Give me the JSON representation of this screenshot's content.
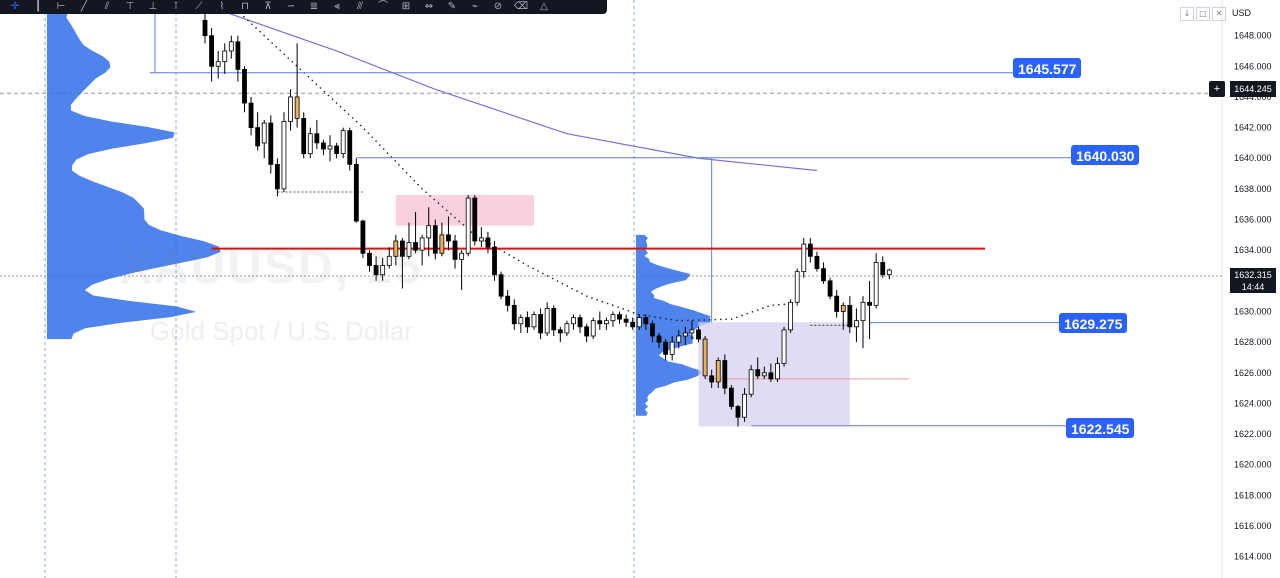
{
  "toolbar": {
    "tools": [
      {
        "name": "crosshair-tool-icon",
        "glyph": "✛",
        "active": true
      },
      {
        "name": "vertical-line-tool-icon",
        "glyph": "┃"
      },
      {
        "name": "horizontal-ray-tool-icon",
        "glyph": "⊢"
      },
      {
        "name": "trend-line-tool-icon",
        "glyph": "╱"
      },
      {
        "name": "channel-tool-icon",
        "glyph": "⫽"
      },
      {
        "name": "info-line-tool-icon",
        "glyph": "⊤"
      },
      {
        "name": "long-position-tool-icon",
        "glyph": "⊥"
      },
      {
        "name": "short-position-tool-icon",
        "glyph": "⊺"
      },
      {
        "name": "extended-line-tool-icon",
        "glyph": "⟋"
      },
      {
        "name": "path-tool-icon",
        "glyph": "⌇"
      },
      {
        "name": "ruler-tool-icon",
        "glyph": "⊓"
      },
      {
        "name": "polyline-tool-icon",
        "glyph": "⊼"
      },
      {
        "name": "curve-tool-icon",
        "glyph": "∽"
      },
      {
        "name": "fib-retracement-tool-icon",
        "glyph": "≣"
      },
      {
        "name": "pitchfork-tool-icon",
        "glyph": "⫷"
      },
      {
        "name": "fib-channel-tool-icon",
        "glyph": "⫻"
      },
      {
        "name": "arc-tool-icon",
        "glyph": "⌒"
      },
      {
        "name": "gann-box-tool-icon",
        "glyph": "⊞"
      },
      {
        "name": "date-range-tool-icon",
        "glyph": "⇔"
      },
      {
        "name": "price-note-tool-icon",
        "glyph": "✎"
      },
      {
        "name": "brush-tool-icon",
        "glyph": "⌁"
      },
      {
        "name": "highlighter-tool-icon",
        "glyph": "⊘"
      },
      {
        "name": "eraser-tool-icon",
        "glyph": "⌫"
      },
      {
        "name": "triangle-tool-icon",
        "glyph": "△"
      }
    ]
  },
  "scale_controls": {
    "minimize_glyph": "↓",
    "maximize_glyph": "□",
    "close_glyph": "✕"
  },
  "currency": "USD",
  "crosshair": {
    "plus_glyph": "+",
    "price": "1644.245"
  },
  "last_price": {
    "price": "1632.315",
    "countdown": "14:44"
  },
  "watermark": {
    "symbol": "XAUUSD, 15",
    "description": "Gold Spot / U.S. Dollar"
  },
  "badges": {
    "b1": "1645.577",
    "b2": "1640.030",
    "b3": "1629.275",
    "b4": "1622.545"
  },
  "colors": {
    "bull_body": "#ffffff",
    "bear_body": "#000000",
    "highlight_body": "#e8b060",
    "resistance_line": "#e01010",
    "level_line": "#5b7fd8",
    "ema_line": "#7e6fd6",
    "badge_bg": "#2962ff",
    "volume_profile": "#2f6ee8",
    "supply_zone": "#f7c6d4",
    "range_box": "#d7d0ef"
  },
  "chart_data": {
    "type": "candlestick",
    "symbol": "XAUUSD",
    "timeframe": "15",
    "y_axis": {
      "min": 1613,
      "max": 1650,
      "ticks": [
        "1648.000",
        "1646.000",
        "1644.000",
        "1642.000",
        "1640.000",
        "1638.000",
        "1636.000",
        "1634.000",
        "1632.000",
        "1630.000",
        "1628.000",
        "1626.000",
        "1624.000",
        "1622.000",
        "1620.000",
        "1618.000",
        "1616.000",
        "1614.000"
      ]
    },
    "candles": [
      [
        1649.0,
        1649.5,
        1647.5,
        1648.0
      ],
      [
        1648.0,
        1648.5,
        1645.0,
        1646.0
      ],
      [
        1646.0,
        1647.0,
        1645.2,
        1646.3
      ],
      [
        1646.3,
        1647.5,
        1645.5,
        1647.0
      ],
      [
        1647.0,
        1648.0,
        1646.5,
        1647.6
      ],
      [
        1647.6,
        1648.0,
        1645.0,
        1645.8
      ],
      [
        1645.8,
        1646.0,
        1643.0,
        1643.6
      ],
      [
        1643.6,
        1644.0,
        1641.5,
        1642.0
      ],
      [
        1642.0,
        1643.0,
        1640.5,
        1640.8
      ],
      [
        1641.0,
        1642.5,
        1640.0,
        1642.3
      ],
      [
        1642.3,
        1642.8,
        1639.0,
        1639.6
      ],
      [
        1639.6,
        1640.0,
        1637.5,
        1638.0
      ],
      [
        1638.0,
        1643.0,
        1637.8,
        1642.4
      ],
      [
        1642.4,
        1644.5,
        1641.8,
        1644.0
      ],
      [
        1644.0,
        1647.5,
        1642.0,
        1642.6
      ],
      [
        1642.6,
        1643.0,
        1640.0,
        1640.3
      ],
      [
        1640.3,
        1642.0,
        1640.0,
        1641.6
      ],
      [
        1641.6,
        1642.5,
        1640.6,
        1641.0
      ],
      [
        1641.0,
        1641.2,
        1640.2,
        1640.6
      ],
      [
        1640.6,
        1641.5,
        1639.8,
        1640.8
      ],
      [
        1640.8,
        1641.0,
        1640.0,
        1640.3
      ],
      [
        1640.3,
        1642.0,
        1640.0,
        1641.8
      ],
      [
        1641.8,
        1642.0,
        1639.2,
        1639.6
      ],
      [
        1639.6,
        1640.0,
        1635.8,
        1635.9
      ],
      [
        1635.9,
        1636.0,
        1633.5,
        1633.8
      ],
      [
        1633.8,
        1634.0,
        1632.6,
        1633.0
      ],
      [
        1633.0,
        1633.6,
        1632.0,
        1632.4
      ],
      [
        1632.4,
        1633.5,
        1632.0,
        1633.0
      ],
      [
        1633.0,
        1634.2,
        1632.8,
        1633.6
      ],
      [
        1633.6,
        1635.0,
        1633.0,
        1634.6
      ],
      [
        1634.6,
        1634.8,
        1631.5,
        1633.6
      ],
      [
        1633.6,
        1635.8,
        1633.4,
        1634.5
      ],
      [
        1634.5,
        1636.5,
        1633.8,
        1634.0
      ],
      [
        1634.0,
        1635.0,
        1633.0,
        1634.8
      ],
      [
        1634.8,
        1636.8,
        1633.6,
        1635.6
      ],
      [
        1635.6,
        1636.0,
        1633.4,
        1633.8
      ],
      [
        1633.8,
        1635.8,
        1633.6,
        1635.0
      ],
      [
        1635.0,
        1636.2,
        1634.0,
        1634.6
      ],
      [
        1634.6,
        1635.0,
        1632.8,
        1633.4
      ],
      [
        1633.4,
        1634.0,
        1631.4,
        1633.8
      ],
      [
        1633.8,
        1637.6,
        1633.6,
        1637.4
      ],
      [
        1637.4,
        1637.6,
        1634.3,
        1634.6
      ],
      [
        1634.6,
        1635.5,
        1634.2,
        1634.8
      ],
      [
        1634.8,
        1635.2,
        1633.8,
        1634.2
      ],
      [
        1634.2,
        1634.6,
        1632.0,
        1632.4
      ],
      [
        1632.4,
        1632.6,
        1630.8,
        1631.0
      ],
      [
        1631.0,
        1631.4,
        1630.0,
        1630.4
      ],
      [
        1630.4,
        1630.8,
        1628.8,
        1629.2
      ],
      [
        1629.2,
        1629.8,
        1628.6,
        1629.6
      ],
      [
        1629.6,
        1630.0,
        1628.6,
        1629.0
      ],
      [
        1629.0,
        1630.0,
        1628.8,
        1629.8
      ],
      [
        1629.8,
        1630.2,
        1628.2,
        1628.6
      ],
      [
        1628.6,
        1630.6,
        1628.4,
        1630.2
      ],
      [
        1630.2,
        1630.4,
        1628.4,
        1628.8
      ],
      [
        1628.8,
        1629.0,
        1628.0,
        1628.6
      ],
      [
        1628.6,
        1629.4,
        1628.4,
        1629.2
      ],
      [
        1629.2,
        1629.8,
        1628.8,
        1629.6
      ],
      [
        1629.6,
        1629.8,
        1628.6,
        1629.0
      ],
      [
        1629.0,
        1629.2,
        1628.0,
        1628.4
      ],
      [
        1628.4,
        1629.6,
        1628.2,
        1629.4
      ],
      [
        1629.4,
        1630.0,
        1628.8,
        1629.2
      ],
      [
        1629.2,
        1629.6,
        1628.8,
        1629.4
      ],
      [
        1629.4,
        1630.0,
        1629.0,
        1629.8
      ],
      [
        1629.8,
        1630.0,
        1629.2,
        1629.5
      ],
      [
        1629.5,
        1629.8,
        1629.0,
        1629.3
      ],
      [
        1629.3,
        1629.6,
        1628.8,
        1629.0
      ],
      [
        1629.0,
        1629.8,
        1628.8,
        1629.6
      ],
      [
        1629.6,
        1629.8,
        1628.8,
        1629.2
      ],
      [
        1629.2,
        1629.4,
        1628.0,
        1628.4
      ],
      [
        1628.4,
        1628.6,
        1627.6,
        1628.0
      ],
      [
        1628.0,
        1628.2,
        1626.8,
        1627.2
      ],
      [
        1627.2,
        1628.4,
        1626.8,
        1628.0
      ],
      [
        1628.0,
        1628.8,
        1627.6,
        1628.4
      ],
      [
        1628.4,
        1629.0,
        1627.8,
        1628.6
      ],
      [
        1628.6,
        1629.4,
        1628.2,
        1628.8
      ],
      [
        1628.8,
        1629.0,
        1628.0,
        1628.2
      ],
      [
        1628.2,
        1628.4,
        1625.6,
        1625.8
      ],
      [
        1625.8,
        1626.2,
        1625.0,
        1625.4
      ],
      [
        1625.4,
        1627.0,
        1625.0,
        1626.8
      ],
      [
        1626.8,
        1627.2,
        1624.6,
        1625.0
      ],
      [
        1625.0,
        1625.2,
        1623.6,
        1623.8
      ],
      [
        1623.8,
        1623.9,
        1622.5,
        1623.1
      ],
      [
        1623.1,
        1625.0,
        1622.8,
        1624.6
      ],
      [
        1624.6,
        1626.5,
        1624.4,
        1626.2
      ],
      [
        1626.2,
        1627.0,
        1625.6,
        1625.8
      ],
      [
        1625.8,
        1626.4,
        1625.6,
        1626.0
      ],
      [
        1626.0,
        1626.6,
        1625.4,
        1625.6
      ],
      [
        1625.6,
        1627.0,
        1625.4,
        1626.6
      ],
      [
        1626.6,
        1629.0,
        1626.4,
        1628.8
      ],
      [
        1628.8,
        1630.8,
        1628.6,
        1630.6
      ],
      [
        1630.6,
        1632.8,
        1630.4,
        1632.6
      ],
      [
        1632.6,
        1634.8,
        1632.2,
        1634.4
      ],
      [
        1634.4,
        1634.8,
        1633.2,
        1633.6
      ],
      [
        1633.6,
        1633.9,
        1632.6,
        1632.8
      ],
      [
        1632.8,
        1633.2,
        1631.8,
        1632.0
      ],
      [
        1632.0,
        1632.2,
        1630.8,
        1631.0
      ],
      [
        1631.0,
        1631.4,
        1629.6,
        1630.0
      ],
      [
        1630.0,
        1630.6,
        1628.8,
        1630.4
      ],
      [
        1630.4,
        1631.0,
        1628.6,
        1629.0
      ],
      [
        1629.0,
        1630.2,
        1628.0,
        1629.4
      ],
      [
        1629.4,
        1631.0,
        1627.6,
        1630.6
      ],
      [
        1630.6,
        1632.0,
        1628.2,
        1630.4
      ],
      [
        1630.4,
        1633.8,
        1630.2,
        1633.2
      ],
      [
        1633.2,
        1633.6,
        1632.2,
        1632.4
      ],
      [
        1632.4,
        1632.8,
        1632.1,
        1632.7
      ]
    ],
    "highlighted_candles": [
      14,
      29,
      36,
      76,
      78,
      97
    ],
    "levels": [
      {
        "price": 1645.577,
        "label": "1645.577"
      },
      {
        "price": 1640.03,
        "label": "1640.030"
      },
      {
        "price": 1629.275,
        "label": "1629.275"
      },
      {
        "price": 1622.545,
        "label": "1622.545"
      }
    ],
    "resistance_line": 1634.1,
    "ema": [
      [
        1650.0,
        0
      ],
      [
        1647.0,
        20
      ],
      [
        1644.5,
        35
      ],
      [
        1641.6,
        55
      ],
      [
        1640.0,
        75
      ],
      [
        1639.2,
        93
      ]
    ],
    "vwap_dotted": [
      [
        1650.0,
        4
      ],
      [
        1646.0,
        14
      ],
      [
        1642.0,
        24
      ],
      [
        1638.0,
        33
      ],
      [
        1635.0,
        41
      ],
      [
        1633.0,
        49
      ],
      [
        1631.0,
        58
      ],
      [
        1629.8,
        66
      ],
      [
        1629.4,
        72
      ],
      [
        1629.5,
        80
      ],
      [
        1630.4,
        86
      ],
      [
        1630.5,
        89
      ]
    ],
    "zones": [
      {
        "type": "supply",
        "top": 1637.6,
        "bottom": 1635.6
      },
      {
        "type": "range",
        "top": 1629.3,
        "bottom": 1622.5
      }
    ]
  }
}
